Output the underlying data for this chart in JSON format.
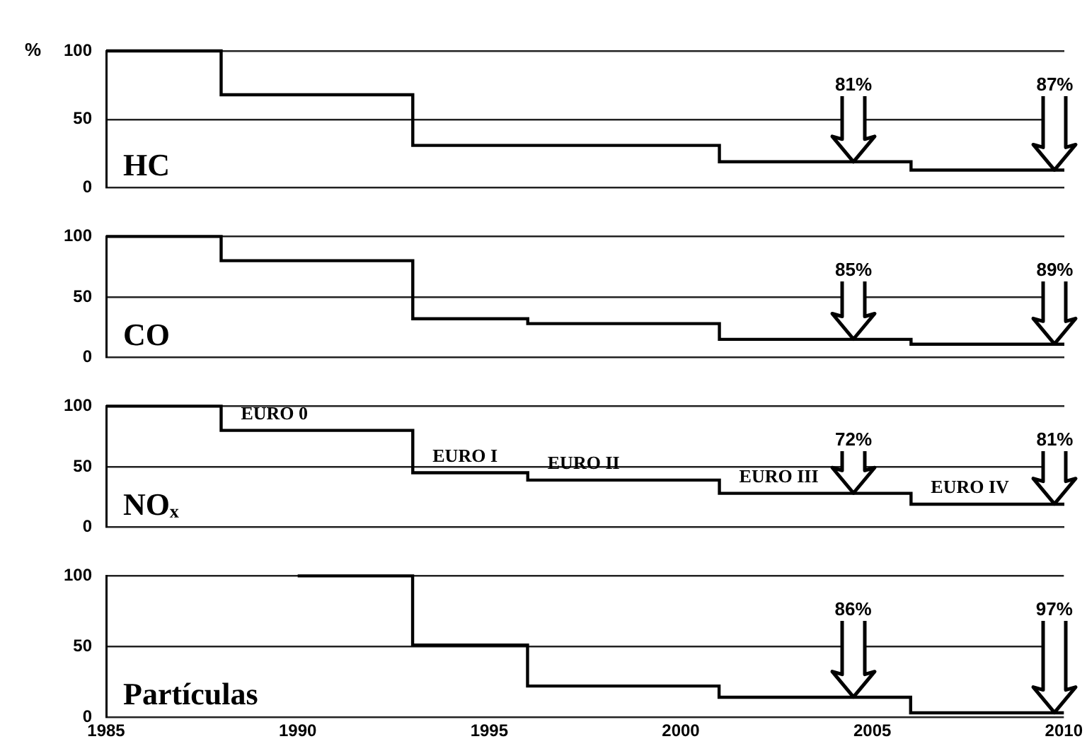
{
  "chart_data": [
    {
      "type": "step",
      "title": "HC",
      "ylabel": "%",
      "x": [
        1985,
        1988,
        1993,
        2001,
        2006,
        2010
      ],
      "values": [
        100,
        68,
        31,
        19,
        13,
        13
      ],
      "color": "#000000",
      "xlim": [
        1985,
        2010
      ],
      "xticks": [
        1985,
        1990,
        1995,
        2000,
        2005,
        2010
      ],
      "ylim": [
        0,
        100
      ],
      "yticks": [
        0,
        50,
        100
      ],
      "grid": "y",
      "tick_labels": "y",
      "marker": "none",
      "annotations": [
        "81%",
        "87%"
      ]
    },
    {
      "type": "step",
      "title": "CO",
      "x": [
        1985,
        1988,
        1993,
        1996,
        2001,
        2006,
        2010
      ],
      "values": [
        100,
        80,
        32,
        28,
        15,
        11,
        11
      ],
      "color": "#000000",
      "xlim": [
        1985,
        2010
      ],
      "xticks": [
        1985,
        1990,
        1995,
        2000,
        2005,
        2010
      ],
      "ylim": [
        0,
        100
      ],
      "yticks": [
        0,
        50,
        100
      ],
      "grid": "y",
      "tick_labels": "y",
      "marker": "none",
      "annotations": [
        "85%",
        "89%"
      ]
    },
    {
      "type": "step",
      "title": "NOₓ",
      "x": [
        1985,
        1988,
        1993,
        1996,
        2001,
        2006,
        2010
      ],
      "values": [
        100,
        80,
        45,
        39,
        28,
        19,
        19
      ],
      "color": "#000000",
      "xlim": [
        1985,
        2010
      ],
      "xticks": [
        1985,
        1990,
        1995,
        2000,
        2005,
        2010
      ],
      "ylim": [
        0,
        100
      ],
      "yticks": [
        0,
        50,
        100
      ],
      "grid": "y",
      "tick_labels": "y",
      "marker": "none",
      "value_labels": [
        null,
        "EURO 0",
        "EURO I",
        "EURO II",
        "EURO III",
        "EURO IV",
        null
      ],
      "annotations": [
        "72%",
        "81%"
      ]
    },
    {
      "type": "step",
      "title": "Partículas",
      "x": [
        1990,
        1993,
        1996,
        2001,
        2006,
        2010
      ],
      "values": [
        100,
        51,
        22,
        14,
        3,
        3
      ],
      "color": "#000000",
      "xlim": [
        1985,
        2010
      ],
      "xticks": [
        1985,
        1990,
        1995,
        2000,
        2005,
        2010
      ],
      "ylim": [
        0,
        100
      ],
      "yticks": [
        0,
        50,
        100
      ],
      "grid": "y",
      "marker": "none",
      "annotations": [
        "86%",
        "97%"
      ]
    }
  ]
}
